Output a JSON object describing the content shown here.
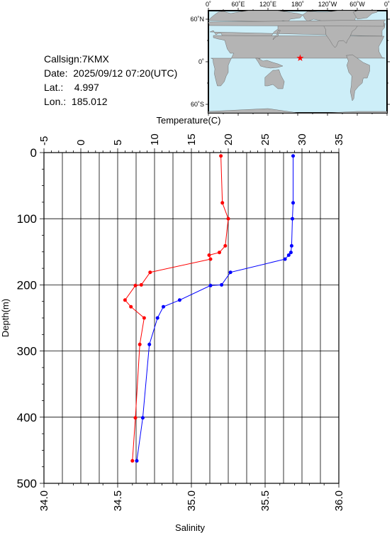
{
  "station": {
    "callsign": "Callsign:7KMX",
    "date": "Date:  2025/09/12 07:20(UTC)",
    "lat": "Lat.:    4.997",
    "lon": "Lon.:  185.012"
  },
  "map": {
    "top_ticks": [
      "0˚",
      "60˚E",
      "120˚E",
      "180˚",
      "120˚W",
      "60˚W",
      "0˚"
    ],
    "left_ticks": [
      "60˚N",
      "0˚",
      "60˚S"
    ],
    "station_marker": {
      "lon": 185.012,
      "lat": 4.997,
      "color": "#ff0000"
    },
    "ocean_color": "#cdeef8",
    "land_color": "#b4b4b4"
  },
  "chart_data": {
    "type": "line",
    "xlabel_top": "Temperature(C)",
    "xlabel_bottom": "Salinity",
    "ylabel": "Depth(m)",
    "temp_ticks": [
      "-5",
      "0",
      "5",
      "10",
      "15",
      "20",
      "25",
      "30",
      "35"
    ],
    "sal_ticks": [
      "34.0",
      "34.5",
      "35.0",
      "35.5",
      "36.0"
    ],
    "depth_ticks": [
      "0",
      "100",
      "200",
      "300",
      "400",
      "500"
    ],
    "temp_lim": [
      -5,
      35
    ],
    "sal_lim": [
      34.0,
      36.0
    ],
    "depth_lim": [
      0,
      500
    ],
    "grid": true,
    "series": [
      {
        "axis": "temperature",
        "color": "#0000ff",
        "points": [
          [
            28.8,
            5
          ],
          [
            28.8,
            76
          ],
          [
            28.7,
            100
          ],
          [
            28.6,
            141
          ],
          [
            28.5,
            151
          ],
          [
            28.2,
            155
          ],
          [
            27.7,
            161
          ],
          [
            20.3,
            181
          ],
          [
            19.1,
            200
          ],
          [
            17.6,
            201
          ],
          [
            13.4,
            223
          ],
          [
            11.2,
            233
          ],
          [
            10.4,
            250
          ],
          [
            9.3,
            290
          ],
          [
            8.4,
            401
          ],
          [
            7.6,
            466
          ]
        ]
      },
      {
        "axis": "salinity",
        "color": "#ff0000",
        "points": [
          [
            35.2,
            5
          ],
          [
            35.21,
            76
          ],
          [
            35.25,
            100
          ],
          [
            35.23,
            141
          ],
          [
            35.19,
            151
          ],
          [
            35.12,
            155
          ],
          [
            35.13,
            161
          ],
          [
            34.72,
            181
          ],
          [
            34.66,
            200
          ],
          [
            34.62,
            201
          ],
          [
            34.55,
            223
          ],
          [
            34.59,
            233
          ],
          [
            34.68,
            250
          ],
          [
            34.65,
            290
          ],
          [
            34.62,
            401
          ],
          [
            34.6,
            466
          ]
        ]
      }
    ]
  }
}
